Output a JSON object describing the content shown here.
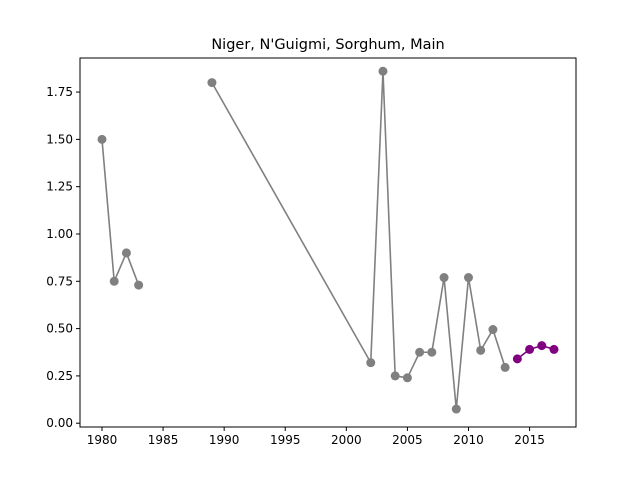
{
  "chart_data": {
    "type": "line",
    "title": "Niger, N'Guigmi, Sorghum, Main",
    "xlabel": "",
    "ylabel": "",
    "xlim": [
      1978.2,
      2018.8
    ],
    "ylim": [
      -0.02,
      1.93
    ],
    "xticks": [
      1980,
      1985,
      1990,
      1995,
      2000,
      2005,
      2010,
      2015
    ],
    "yticks": [
      0.0,
      0.25,
      0.5,
      0.75,
      1.0,
      1.25,
      1.5,
      1.75
    ],
    "ytick_labels": [
      "0.00",
      "0.25",
      "0.50",
      "0.75",
      "1.00",
      "1.25",
      "1.50",
      "1.75"
    ],
    "grid": false,
    "series": [
      {
        "color": "#808080",
        "marker": "circle",
        "segments": [
          [
            [
              1980,
              1.5
            ],
            [
              1981,
              0.75
            ],
            [
              1982,
              0.9
            ],
            [
              1983,
              0.73
            ]
          ],
          [
            [
              1989,
              1.8
            ],
            [
              2002,
              0.32
            ],
            [
              2003,
              1.86
            ],
            [
              2004,
              0.25
            ],
            [
              2005,
              0.24
            ],
            [
              2006,
              0.375
            ],
            [
              2007,
              0.375
            ],
            [
              2008,
              0.77
            ],
            [
              2009,
              0.075
            ],
            [
              2010,
              0.77
            ],
            [
              2011,
              0.385
            ],
            [
              2012,
              0.495
            ],
            [
              2013,
              0.295
            ]
          ]
        ]
      },
      {
        "color": "#800080",
        "marker": "circle",
        "segments": [
          [
            [
              2014,
              0.34
            ],
            [
              2015,
              0.39
            ],
            [
              2016,
              0.41
            ],
            [
              2017,
              0.39
            ]
          ]
        ]
      }
    ]
  }
}
